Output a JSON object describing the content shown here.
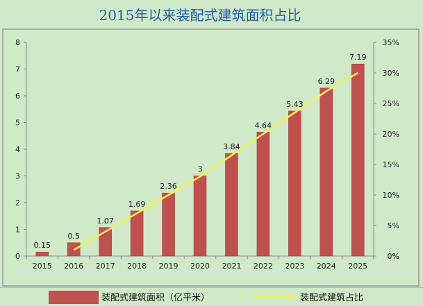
{
  "chart_data": {
    "type": "bar",
    "title": "2015年以来装配式建筑面积占比",
    "categories": [
      "2015",
      "2016",
      "2017",
      "2018",
      "2019",
      "2020",
      "2021",
      "2022",
      "2023",
      "2024",
      "2025"
    ],
    "series": [
      {
        "name": "装配式建筑面积（亿平米）",
        "type": "bar",
        "axis": "left",
        "color": "#c0504d",
        "values": [
          0.15,
          0.5,
          1.07,
          1.69,
          2.36,
          3,
          3.84,
          4.64,
          5.43,
          6.29,
          7.19
        ],
        "data_labels": [
          "0.15",
          "0.5",
          "1.07",
          "1.69",
          "2.36",
          "3",
          "3.84",
          "4.64",
          "5.43",
          "6.29",
          "7.19"
        ]
      },
      {
        "name": "装配式建筑占比",
        "type": "line",
        "axis": "right",
        "color": "#f2f24a",
        "values": [
          null,
          0.01,
          0.04,
          0.07,
          0.1,
          0.13,
          0.165,
          0.2,
          0.235,
          0.27,
          0.3
        ]
      }
    ],
    "y_left": {
      "min": 0,
      "max": 8,
      "ticks": [
        "0",
        "1",
        "2",
        "3",
        "4",
        "5",
        "6",
        "7",
        "8"
      ]
    },
    "y_right": {
      "min": 0,
      "max": 0.35,
      "ticks": [
        "0%",
        "5%",
        "10%",
        "15%",
        "20%",
        "25%",
        "30%",
        "35%"
      ]
    },
    "grid": false,
    "legend_position": "bottom",
    "background_color": "#cfe9c9",
    "title_color": "#1f5fa8"
  }
}
